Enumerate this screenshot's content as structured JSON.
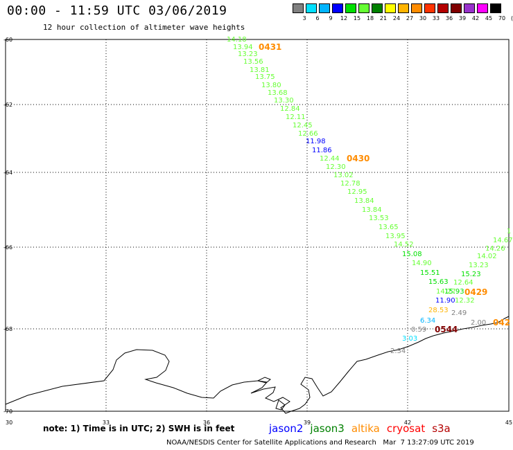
{
  "header": {
    "title": "00:00 - 11:59 UTC 03/06/2019",
    "subtitle": "12 hour collection of altimeter wave heights"
  },
  "colorbar": {
    "labels": [
      "3",
      "6",
      "9",
      "12",
      "15",
      "18",
      "21",
      "24",
      "27",
      "30",
      "33",
      "36",
      "39",
      "42",
      "45",
      "70",
      "(ft)"
    ],
    "colors": [
      "#808080",
      "#00e0ff",
      "#00b4ff",
      "#0000ff",
      "#00e000",
      "#66ff33",
      "#008000",
      "#ffff00",
      "#ffb400",
      "#ff8c00",
      "#ff3300",
      "#b40000",
      "#800000",
      "#9933cc",
      "#ff00ff",
      "#000000"
    ]
  },
  "axes": {
    "x_ticks": [
      "30",
      "33",
      "36",
      "39",
      "42",
      "45"
    ],
    "y_ticks": [
      "-60",
      "-62",
      "-64",
      "-66",
      "-68",
      "-70"
    ]
  },
  "pass_labels": [
    {
      "text": "0431",
      "color": "#ff8c00"
    },
    {
      "text": "0430",
      "color": "#ff8c00"
    },
    {
      "text": "0429",
      "color": "#ff8c00"
    },
    {
      "text": "042",
      "color": "#ff8c00"
    },
    {
      "text": "0544",
      "color": "#800000"
    }
  ],
  "observations": [
    {
      "v": "14.18",
      "c": "#66ff33"
    },
    {
      "v": "13.94",
      "c": "#66ff33"
    },
    {
      "v": "13.23",
      "c": "#66ff33"
    },
    {
      "v": "13.56",
      "c": "#66ff33"
    },
    {
      "v": "13.81",
      "c": "#66ff33"
    },
    {
      "v": "13.75",
      "c": "#66ff33"
    },
    {
      "v": "13.80",
      "c": "#66ff33"
    },
    {
      "v": "13.68",
      "c": "#66ff33"
    },
    {
      "v": "13.30",
      "c": "#66ff33"
    },
    {
      "v": "12.84",
      "c": "#66ff33"
    },
    {
      "v": "12.11",
      "c": "#66ff33"
    },
    {
      "v": "12.45",
      "c": "#66ff33"
    },
    {
      "v": "12.66",
      "c": "#66ff33"
    },
    {
      "v": "11.98",
      "c": "#0000ff"
    },
    {
      "v": "11.86",
      "c": "#0000ff"
    },
    {
      "v": "12.44",
      "c": "#66ff33"
    },
    {
      "v": "12.30",
      "c": "#66ff33"
    },
    {
      "v": "13.02",
      "c": "#66ff33"
    },
    {
      "v": "12.78",
      "c": "#66ff33"
    },
    {
      "v": "12.95",
      "c": "#66ff33"
    },
    {
      "v": "13.84",
      "c": "#66ff33"
    },
    {
      "v": "13.84",
      "c": "#66ff33"
    },
    {
      "v": "13.53",
      "c": "#66ff33"
    },
    {
      "v": "13.65",
      "c": "#66ff33"
    },
    {
      "v": "13.95",
      "c": "#66ff33"
    },
    {
      "v": "14.52",
      "c": "#66ff33"
    },
    {
      "v": "15.08",
      "c": "#00e000"
    },
    {
      "v": "14.90",
      "c": "#66ff33"
    },
    {
      "v": "15.51",
      "c": "#00e000"
    },
    {
      "v": "15.63",
      "c": "#00e000"
    },
    {
      "v": "14.27",
      "c": "#66ff33"
    },
    {
      "v": "15.93",
      "c": "#00e000"
    },
    {
      "v": "12.32",
      "c": "#66ff33"
    },
    {
      "v": "11.90",
      "c": "#0000ff"
    },
    {
      "v": "28.53",
      "c": "#ffb400"
    },
    {
      "v": "6.34",
      "c": "#00b4ff"
    },
    {
      "v": "0.59",
      "c": "#808080"
    },
    {
      "v": "3.03",
      "c": "#00e0ff"
    },
    {
      "v": "2.34",
      "c": "#808080"
    },
    {
      "v": "2.49",
      "c": "#808080"
    },
    {
      "v": "2.00",
      "c": "#808080"
    },
    {
      "v": "15.23",
      "c": "#00e000"
    },
    {
      "v": "12.64",
      "c": "#66ff33"
    },
    {
      "v": "13.23",
      "c": "#66ff33"
    },
    {
      "v": "14.02",
      "c": "#66ff33"
    },
    {
      "v": "14.26",
      "c": "#66ff33"
    },
    {
      "v": "14.67",
      "c": "#66ff33"
    },
    {
      "v": "1",
      "c": "#66ff33"
    }
  ],
  "footer": {
    "note": "note: 1) Time is in UTC; 2) SWH is in feet",
    "satellites": [
      {
        "name": "jason2",
        "color": "#0000ff"
      },
      {
        "name": "jason3",
        "color": "#008000"
      },
      {
        "name": "altika",
        "color": "#ff8c00"
      },
      {
        "name": "cryosat",
        "color": "#ff0000"
      },
      {
        "name": "s3a",
        "color": "#b40000"
      }
    ],
    "credit": "NOAA/NESDIS Center for Satellite Applications and Research   Mar  7 13:27:09 UTC 2019"
  }
}
